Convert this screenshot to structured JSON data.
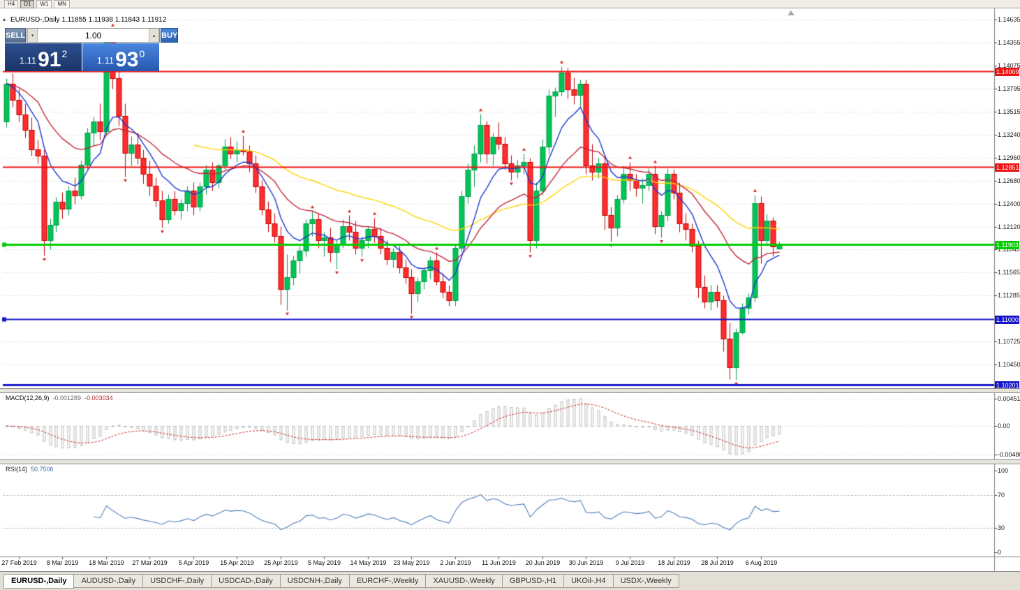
{
  "toolbar": {
    "timeframes": [
      {
        "label": "H4",
        "active": false
      },
      {
        "label": "D1",
        "active": true
      },
      {
        "label": "W1",
        "active": false
      },
      {
        "label": "MN",
        "active": false
      }
    ]
  },
  "title": {
    "text": "EURUSD-,Daily 1.11855 1.11938 1.11843 1.11912"
  },
  "trade": {
    "sell_label": "SELL",
    "buy_label": "BUY",
    "volume": "1.00",
    "sell": {
      "prefix": "1.11",
      "big": "91",
      "sup": "2"
    },
    "buy": {
      "prefix": "1.11",
      "big": "93",
      "sup": "0"
    }
  },
  "chart_data": {
    "type": "candlestick",
    "symbol": "EURUSD-",
    "timeframe": "Daily",
    "price_axis": {
      "labels": [
        "1.14635",
        "1.14355",
        "1.14075",
        "1.13795",
        "1.13515",
        "1.13240",
        "1.12960",
        "1.12680",
        "1.12400",
        "1.12120",
        "1.11845",
        "1.11565",
        "1.11285",
        "1.10725",
        "1.10450"
      ]
    },
    "levels": [
      {
        "label": "1.14009",
        "price": 1.14009,
        "color": "#ee1111",
        "width": 2,
        "anchor": false
      },
      {
        "label": "1.12851",
        "price": 1.12851,
        "color": "#ee1111",
        "width": 2,
        "anchor": false
      },
      {
        "label": "1.11903",
        "price": 1.11903,
        "color": "#00cc00",
        "width": 3,
        "anchor": true
      },
      {
        "label": "1.11000",
        "price": 1.11,
        "color": "#1515c8",
        "width": 2,
        "anchor": true
      },
      {
        "label": "1.10201",
        "price": 1.10201,
        "color": "#1515c8",
        "width": 3,
        "anchor": false
      }
    ],
    "candle_colors": {
      "up_fill": "#00c455",
      "up_edge": "#089b4c",
      "down_fill": "#ff2d2d",
      "down_edge": "#c00000",
      "fractal": "#d21f1f"
    },
    "moving_averages": [
      {
        "name": "slow-ma",
        "period": 48,
        "color": "#ffd400",
        "draw_from": 30
      },
      {
        "name": "medium-ma",
        "period": 21,
        "color": "#c2273a",
        "draw_from": 0
      },
      {
        "name": "fast-ma",
        "period": 8,
        "color": "#1a37d0",
        "draw_from": 0
      }
    ],
    "date_ticks": [
      {
        "label": "27 Feb 2019",
        "i": 2
      },
      {
        "label": "8 Mar 2019",
        "i": 9
      },
      {
        "label": "18 Mar 2019",
        "i": 16
      },
      {
        "label": "27 Mar 2019",
        "i": 23
      },
      {
        "label": "5 Apr 2019",
        "i": 30
      },
      {
        "label": "15 Apr 2019",
        "i": 37
      },
      {
        "label": "25 Apr 2019",
        "i": 44
      },
      {
        "label": "5 May 2019",
        "i": 51
      },
      {
        "label": "14 May 2019",
        "i": 58
      },
      {
        "label": "23 May 2019",
        "i": 65
      },
      {
        "label": "2 Jun 2019",
        "i": 72
      },
      {
        "label": "11 Jun 2019",
        "i": 79
      },
      {
        "label": "20 Jun 2019",
        "i": 86
      },
      {
        "label": "30 Jun 2019",
        "i": 93
      },
      {
        "label": "9 Jul 2019",
        "i": 100
      },
      {
        "label": "18 Jul 2019",
        "i": 107
      },
      {
        "label": "28 Jul 2019",
        "i": 114
      },
      {
        "label": "6 Aug 2019",
        "i": 121
      }
    ],
    "ohlc": [
      [
        1.134,
        1.1392,
        1.1333,
        1.1386
      ],
      [
        1.1386,
        1.1398,
        1.1358,
        1.1366
      ],
      [
        1.1366,
        1.138,
        1.134,
        1.1348
      ],
      [
        1.1348,
        1.1362,
        1.132,
        1.133
      ],
      [
        1.133,
        1.1345,
        1.1298,
        1.1306
      ],
      [
        1.1306,
        1.1318,
        1.1289,
        1.1298
      ],
      [
        1.1298,
        1.1306,
        1.1177,
        1.1196
      ],
      [
        1.1196,
        1.1222,
        1.1185,
        1.1214
      ],
      [
        1.1214,
        1.1248,
        1.1206,
        1.1242
      ],
      [
        1.1242,
        1.1254,
        1.1222,
        1.1234
      ],
      [
        1.1234,
        1.1262,
        1.1226,
        1.1256
      ],
      [
        1.1256,
        1.1272,
        1.124,
        1.125
      ],
      [
        1.125,
        1.1292,
        1.1246,
        1.1287
      ],
      [
        1.1287,
        1.1332,
        1.1282,
        1.1326
      ],
      [
        1.1326,
        1.1346,
        1.131,
        1.134
      ],
      [
        1.134,
        1.1362,
        1.1318,
        1.1328
      ],
      [
        1.1328,
        1.1448,
        1.1324,
        1.1438
      ],
      [
        1.1438,
        1.1452,
        1.138,
        1.1392
      ],
      [
        1.1392,
        1.14,
        1.1335,
        1.1347
      ],
      [
        1.1347,
        1.1362,
        1.1273,
        1.1302
      ],
      [
        1.1302,
        1.1322,
        1.1286,
        1.1312
      ],
      [
        1.1312,
        1.1326,
        1.1288,
        1.1296
      ],
      [
        1.1296,
        1.1306,
        1.1264,
        1.1276
      ],
      [
        1.1276,
        1.1292,
        1.125,
        1.1262
      ],
      [
        1.1262,
        1.1272,
        1.1236,
        1.1244
      ],
      [
        1.1244,
        1.1256,
        1.1211,
        1.1221
      ],
      [
        1.1221,
        1.1252,
        1.1216,
        1.1246
      ],
      [
        1.1246,
        1.1256,
        1.1226,
        1.1232
      ],
      [
        1.1232,
        1.1246,
        1.1221,
        1.1241
      ],
      [
        1.1241,
        1.1262,
        1.1231,
        1.1256
      ],
      [
        1.1256,
        1.1266,
        1.1226,
        1.1236
      ],
      [
        1.1236,
        1.1266,
        1.1231,
        1.1261
      ],
      [
        1.1261,
        1.1287,
        1.1252,
        1.1281
      ],
      [
        1.1281,
        1.1291,
        1.1256,
        1.1266
      ],
      [
        1.1266,
        1.1289,
        1.1259,
        1.1286
      ],
      [
        1.1286,
        1.1319,
        1.1281,
        1.1309
      ],
      [
        1.1309,
        1.1321,
        1.1295,
        1.1301
      ],
      [
        1.1301,
        1.1316,
        1.1291,
        1.1306
      ],
      [
        1.1306,
        1.1323,
        1.1299,
        1.1303
      ],
      [
        1.1303,
        1.1311,
        1.1279,
        1.1289
      ],
      [
        1.1289,
        1.1299,
        1.1253,
        1.1261
      ],
      [
        1.1261,
        1.1269,
        1.1226,
        1.1233
      ],
      [
        1.1233,
        1.1243,
        1.1206,
        1.1216
      ],
      [
        1.1216,
        1.1229,
        1.1193,
        1.1201
      ],
      [
        1.1201,
        1.1213,
        1.1118,
        1.1136
      ],
      [
        1.1136,
        1.1179,
        1.1111,
        1.1151
      ],
      [
        1.1151,
        1.1177,
        1.1141,
        1.1171
      ],
      [
        1.1171,
        1.1189,
        1.1156,
        1.1183
      ],
      [
        1.1183,
        1.1221,
        1.1176,
        1.1216
      ],
      [
        1.1216,
        1.1231,
        1.1201,
        1.1221
      ],
      [
        1.1221,
        1.1229,
        1.1186,
        1.1196
      ],
      [
        1.1196,
        1.1206,
        1.1176,
        1.1199
      ],
      [
        1.1199,
        1.1211,
        1.1169,
        1.1181
      ],
      [
        1.1181,
        1.1196,
        1.1161,
        1.1191
      ],
      [
        1.1191,
        1.1221,
        1.1186,
        1.1213
      ],
      [
        1.1213,
        1.1226,
        1.1196,
        1.1206
      ],
      [
        1.1206,
        1.1219,
        1.1179,
        1.1186
      ],
      [
        1.1186,
        1.1201,
        1.1176,
        1.1196
      ],
      [
        1.1196,
        1.1213,
        1.1186,
        1.1209
      ],
      [
        1.1209,
        1.1223,
        1.1193,
        1.1201
      ],
      [
        1.1201,
        1.1211,
        1.1179,
        1.1186
      ],
      [
        1.1186,
        1.1196,
        1.1166,
        1.1173
      ],
      [
        1.1173,
        1.1186,
        1.1163,
        1.1181
      ],
      [
        1.1181,
        1.1189,
        1.1156,
        1.1163
      ],
      [
        1.1163,
        1.1173,
        1.1143,
        1.1151
      ],
      [
        1.1151,
        1.1161,
        1.1107,
        1.1131
      ],
      [
        1.1131,
        1.1151,
        1.1121,
        1.1146
      ],
      [
        1.1146,
        1.1163,
        1.1136,
        1.1159
      ],
      [
        1.1159,
        1.1176,
        1.1149,
        1.1171
      ],
      [
        1.1171,
        1.1181,
        1.1141,
        1.1146
      ],
      [
        1.1146,
        1.1156,
        1.1126,
        1.1133
      ],
      [
        1.1133,
        1.1141,
        1.1116,
        1.1123
      ],
      [
        1.1123,
        1.1191,
        1.1116,
        1.1186
      ],
      [
        1.1186,
        1.1256,
        1.1181,
        1.1249
      ],
      [
        1.1249,
        1.1289,
        1.1241,
        1.1281
      ],
      [
        1.1281,
        1.1311,
        1.1261,
        1.1301
      ],
      [
        1.1301,
        1.1349,
        1.1291,
        1.1336
      ],
      [
        1.1336,
        1.1341,
        1.1289,
        1.1301
      ],
      [
        1.1301,
        1.1326,
        1.1286,
        1.1321
      ],
      [
        1.1321,
        1.1339,
        1.1306,
        1.1313
      ],
      [
        1.1313,
        1.1321,
        1.1281,
        1.1289
      ],
      [
        1.1289,
        1.1299,
        1.1269,
        1.1279
      ],
      [
        1.1279,
        1.1293,
        1.1271,
        1.1286
      ],
      [
        1.1286,
        1.1301,
        1.1276,
        1.1291
      ],
      [
        1.1291,
        1.1296,
        1.1181,
        1.1196
      ],
      [
        1.1196,
        1.1266,
        1.1186,
        1.1256
      ],
      [
        1.1256,
        1.1319,
        1.1251,
        1.1309
      ],
      [
        1.1309,
        1.1379,
        1.1301,
        1.1371
      ],
      [
        1.1371,
        1.1381,
        1.1346,
        1.1376
      ],
      [
        1.1376,
        1.1407,
        1.1371,
        1.1399
      ],
      [
        1.1399,
        1.1405,
        1.1368,
        1.1379
      ],
      [
        1.1379,
        1.1393,
        1.1361,
        1.1372
      ],
      [
        1.1372,
        1.1391,
        1.1356,
        1.1386
      ],
      [
        1.1386,
        1.1391,
        1.1276,
        1.1286
      ],
      [
        1.1286,
        1.1313,
        1.1269,
        1.1279
      ],
      [
        1.1279,
        1.1296,
        1.1271,
        1.1289
      ],
      [
        1.1289,
        1.1299,
        1.1208,
        1.1226
      ],
      [
        1.1226,
        1.1236,
        1.1194,
        1.1211
      ],
      [
        1.1211,
        1.1251,
        1.1201,
        1.1246
      ],
      [
        1.1246,
        1.1286,
        1.1241,
        1.1276
      ],
      [
        1.1276,
        1.1291,
        1.1256,
        1.1269
      ],
      [
        1.1269,
        1.1276,
        1.1249,
        1.1259
      ],
      [
        1.1259,
        1.1271,
        1.1241,
        1.1263
      ],
      [
        1.1263,
        1.1283,
        1.1256,
        1.1276
      ],
      [
        1.1276,
        1.1286,
        1.1203,
        1.1213
      ],
      [
        1.1213,
        1.1231,
        1.1199,
        1.1226
      ],
      [
        1.1226,
        1.1283,
        1.1219,
        1.1276
      ],
      [
        1.1276,
        1.1281,
        1.1246,
        1.1253
      ],
      [
        1.1253,
        1.1266,
        1.1206,
        1.1216
      ],
      [
        1.1216,
        1.1229,
        1.1196,
        1.1209
      ],
      [
        1.1209,
        1.1216,
        1.1181,
        1.1189
      ],
      [
        1.1189,
        1.1196,
        1.1126,
        1.1139
      ],
      [
        1.1139,
        1.1153,
        1.1113,
        1.1121
      ],
      [
        1.1121,
        1.1141,
        1.1111,
        1.1133
      ],
      [
        1.1133,
        1.1141,
        1.1114,
        1.1123
      ],
      [
        1.1123,
        1.1129,
        1.1061,
        1.1076
      ],
      [
        1.1076,
        1.1096,
        1.1027,
        1.1041
      ],
      [
        1.1041,
        1.1089,
        1.1026,
        1.1084
      ],
      [
        1.1084,
        1.1119,
        1.1081,
        1.1113
      ],
      [
        1.1113,
        1.1131,
        1.1106,
        1.1126
      ],
      [
        1.1126,
        1.1251,
        1.1121,
        1.1241
      ],
      [
        1.1241,
        1.1249,
        1.1168,
        1.1196
      ],
      [
        1.1196,
        1.1228,
        1.1189,
        1.1219
      ],
      [
        1.1219,
        1.1224,
        1.1176,
        1.1188
      ],
      [
        1.11855,
        1.11938,
        1.11843,
        1.11912
      ]
    ]
  },
  "macd": {
    "name": "MACD(12,26,9)",
    "value_main": "-0.001289",
    "value_signal": "-0.003034",
    "fast": 12,
    "slow": 26,
    "signal": 9,
    "axis_labels": [
      "0.004517",
      "0.00",
      "-0.004806"
    ],
    "histogram_color": "#b9b9b9",
    "signal_color": "#cc2525"
  },
  "rsi": {
    "name": "RSI(14)",
    "value": "50.7506",
    "period": 14,
    "levels": [
      70,
      30
    ],
    "axis_labels": [
      "100",
      "70",
      "30",
      "0"
    ],
    "line_color": "#4f7cb8"
  },
  "tabs": [
    {
      "label": "EURUSD-,Daily",
      "active": true
    },
    {
      "label": "AUDUSD-,Daily",
      "active": false
    },
    {
      "label": "USDCHF-,Daily",
      "active": false
    },
    {
      "label": "USDCAD-,Daily",
      "active": false
    },
    {
      "label": "USDCNH-,Daily",
      "active": false
    },
    {
      "label": "EURCHF-,Weekly",
      "active": false
    },
    {
      "label": "XAUUSD-,Weekly",
      "active": false
    },
    {
      "label": "GBPUSD-,H1",
      "active": false
    },
    {
      "label": "UKOil-,H4",
      "active": false
    },
    {
      "label": "USDX-,Weekly",
      "active": false
    }
  ]
}
